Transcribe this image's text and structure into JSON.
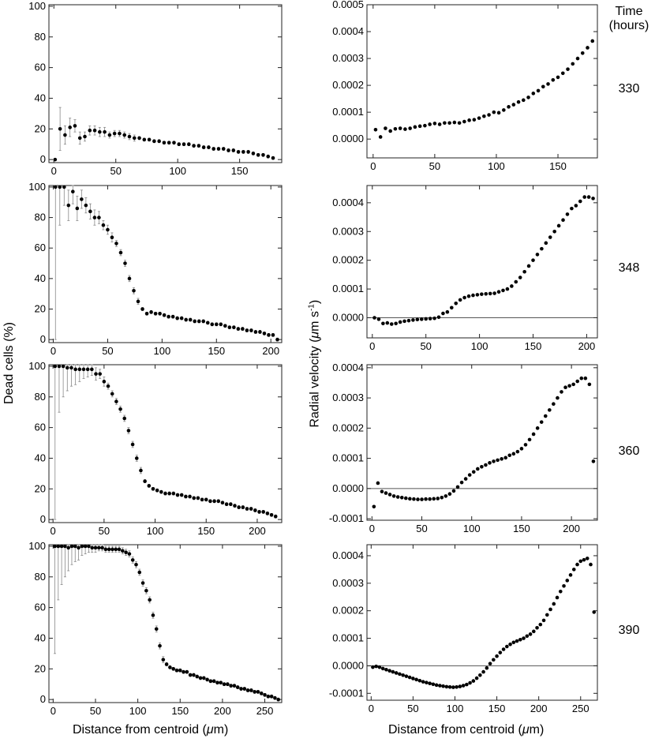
{
  "labels": {
    "left_ylabel": "Dead cells (%)",
    "right_ylabel_prefix": "Radial velocity (",
    "right_ylabel_mu": "μ",
    "right_ylabel_unit": "m s",
    "right_ylabel_exp": "-1",
    "right_ylabel_suffix": ")",
    "xlabel_prefix": "Distance from centroid (",
    "xlabel_mu": "μ",
    "xlabel_suffix": "m)",
    "time_header_1": "Time",
    "time_header_2": "(hours)"
  },
  "time_labels": [
    "330",
    "348",
    "360",
    "390"
  ],
  "chart_data": [
    {
      "type": "scatter",
      "panel": "dead-330",
      "series": "Dead cells (%)",
      "xlim": [
        -4,
        184
      ],
      "ylim": [
        -2,
        101
      ],
      "xticks": [
        0,
        50,
        100,
        150
      ],
      "yticks": [
        0,
        20,
        40,
        60,
        80,
        100
      ],
      "yticklabels": [
        "0",
        "20",
        "40",
        "60",
        "80",
        "100"
      ],
      "x": [
        1,
        5,
        9,
        13,
        17,
        21,
        25,
        29,
        33,
        37,
        41,
        45,
        49,
        53,
        57,
        61,
        65,
        69,
        73,
        77,
        81,
        85,
        89,
        93,
        97,
        101,
        105,
        109,
        113,
        117,
        121,
        125,
        129,
        133,
        137,
        141,
        145,
        149,
        153,
        157,
        161,
        165,
        169,
        173,
        177
      ],
      "y": [
        0,
        20,
        16,
        21,
        22,
        14,
        15,
        19,
        19,
        18,
        18,
        16,
        17,
        17,
        16,
        15,
        14,
        14,
        13,
        13,
        12,
        12,
        11,
        11,
        11,
        10,
        10,
        10,
        9,
        9,
        8,
        8,
        7,
        7,
        7,
        6,
        6,
        5,
        5,
        5,
        4,
        3,
        3,
        2,
        1
      ],
      "errors": [
        0,
        14,
        6,
        6,
        4,
        4,
        3,
        3,
        3,
        3,
        3,
        2,
        2,
        2,
        2,
        2,
        2,
        1,
        1,
        1,
        1,
        1,
        1,
        1,
        1,
        1,
        1,
        1,
        1,
        1,
        1,
        1,
        1,
        1,
        1,
        1,
        1,
        1,
        1,
        1,
        1,
        1,
        1,
        1,
        1
      ],
      "zero_line": false
    },
    {
      "type": "scatter",
      "panel": "vel-330",
      "series": "Radial velocity",
      "xlim": [
        -5,
        182
      ],
      "ylim": [
        -7e-05,
        0.0005
      ],
      "xticks": [
        0,
        50,
        100,
        150
      ],
      "yticks": [
        0,
        0.0001,
        0.0002,
        0.0003,
        0.0004,
        0.0005
      ],
      "yticklabels": [
        "0.0000",
        "0.0001",
        "0.0002",
        "0.0003",
        "0.0004",
        "0.0005"
      ],
      "x": [
        2,
        6,
        10,
        14,
        18,
        22,
        26,
        30,
        34,
        38,
        42,
        46,
        50,
        54,
        58,
        62,
        66,
        70,
        74,
        78,
        82,
        86,
        90,
        94,
        98,
        102,
        106,
        110,
        114,
        118,
        122,
        126,
        130,
        134,
        138,
        142,
        146,
        150,
        154,
        158,
        162,
        166,
        170,
        174,
        178
      ],
      "y": [
        3.5e-05,
        8e-06,
        4e-05,
        3e-05,
        3.8e-05,
        4e-05,
        3.7e-05,
        4e-05,
        4.5e-05,
        4.8e-05,
        5e-05,
        5.5e-05,
        5.8e-05,
        5.5e-05,
        6e-05,
        6e-05,
        6.2e-05,
        6e-05,
        6.5e-05,
        7e-05,
        7.2e-05,
        7.8e-05,
        8.5e-05,
        9e-05,
        0.0001,
        9.8e-05,
        0.000108,
        0.00012,
        0.000128,
        0.000138,
        0.000145,
        0.000155,
        0.00017,
        0.00018,
        0.000195,
        0.000205,
        0.00022,
        0.00023,
        0.000245,
        0.00026,
        0.00028,
        0.0003,
        0.00032,
        0.00034,
        0.000365
      ],
      "zero_line": false
    },
    {
      "type": "scatter",
      "panel": "dead-348",
      "series": "Dead cells (%)",
      "xlim": [
        -4,
        210
      ],
      "ylim": [
        -2,
        101
      ],
      "xticks": [
        0,
        50,
        100,
        150,
        200
      ],
      "yticks": [
        0,
        20,
        40,
        60,
        80,
        100
      ],
      "yticklabels": [
        "0",
        "20",
        "40",
        "60",
        "80",
        "100"
      ],
      "x": [
        2,
        6,
        10,
        14,
        18,
        22,
        26,
        30,
        34,
        38,
        42,
        46,
        50,
        54,
        58,
        62,
        66,
        70,
        74,
        78,
        82,
        86,
        90,
        94,
        98,
        102,
        106,
        110,
        114,
        118,
        122,
        126,
        130,
        134,
        138,
        142,
        146,
        150,
        154,
        158,
        162,
        166,
        170,
        174,
        178,
        182,
        186,
        190,
        194,
        198,
        202,
        206
      ],
      "y": [
        100,
        100,
        100,
        88,
        97,
        86,
        92,
        88,
        84,
        80,
        80,
        75,
        72,
        67,
        63,
        57,
        50,
        40,
        32,
        25,
        20,
        17,
        18,
        17,
        17,
        16,
        15,
        15,
        14,
        14,
        13,
        13,
        12,
        12,
        12,
        11,
        10,
        10,
        10,
        9,
        8,
        8,
        7,
        7,
        6,
        6,
        5,
        5,
        4,
        3,
        3,
        0
      ],
      "errors": [
        100,
        25,
        12,
        10,
        8,
        8,
        6,
        5,
        5,
        5,
        4,
        3,
        3,
        3,
        2,
        2,
        2,
        2,
        2,
        2,
        1,
        1,
        1,
        1,
        1,
        1,
        1,
        1,
        1,
        1,
        1,
        1,
        1,
        1,
        1,
        1,
        1,
        1,
        1,
        1,
        1,
        1,
        1,
        1,
        1,
        1,
        1,
        1,
        1,
        1,
        1,
        1
      ],
      "zero_line": false
    },
    {
      "type": "scatter",
      "panel": "vel-348",
      "series": "Radial velocity",
      "xlim": [
        -5,
        210
      ],
      "ylim": [
        -7e-05,
        0.00046
      ],
      "xticks": [
        0,
        50,
        100,
        150,
        200
      ],
      "yticks": [
        0,
        0.0001,
        0.0002,
        0.0003,
        0.0004
      ],
      "yticklabels": [
        "0.0000",
        "0.0001",
        "0.0002",
        "0.0003",
        "0.0004"
      ],
      "x": [
        2,
        6,
        10,
        14,
        18,
        22,
        26,
        30,
        34,
        38,
        42,
        46,
        50,
        54,
        58,
        62,
        66,
        70,
        74,
        78,
        82,
        86,
        90,
        94,
        98,
        102,
        106,
        110,
        114,
        118,
        122,
        126,
        130,
        134,
        138,
        142,
        146,
        150,
        154,
        158,
        162,
        166,
        170,
        174,
        178,
        182,
        186,
        190,
        194,
        198,
        202,
        206
      ],
      "y": [
        0,
        -5e-06,
        -2e-05,
        -1.8e-05,
        -2.2e-05,
        -2e-05,
        -1.5e-05,
        -1.2e-05,
        -1e-05,
        -8e-06,
        -6e-06,
        -5e-06,
        -4e-06,
        -3e-06,
        -2e-06,
        2e-06,
        1.5e-05,
        2e-05,
        3.5e-05,
        5e-05,
        6.2e-05,
        7e-05,
        7.5e-05,
        7.8e-05,
        8e-05,
        8.2e-05,
        8.3e-05,
        8.4e-05,
        8.5e-05,
        9e-05,
        9.5e-05,
        0.0001,
        0.00011,
        0.000125,
        0.00014,
        0.00016,
        0.00018,
        0.0002,
        0.00022,
        0.00024,
        0.00026,
        0.00028,
        0.0003,
        0.00032,
        0.00034,
        0.00036,
        0.00038,
        0.00039,
        0.000405,
        0.00042,
        0.00042,
        0.000415
      ],
      "zero_line": true
    },
    {
      "type": "scatter",
      "panel": "dead-360",
      "series": "Dead cells (%)",
      "xlim": [
        -4,
        224
      ],
      "ylim": [
        -2,
        101
      ],
      "xticks": [
        0,
        50,
        100,
        150,
        200
      ],
      "yticks": [
        0,
        20,
        40,
        60,
        80,
        100
      ],
      "yticklabels": [
        "0",
        "20",
        "40",
        "60",
        "80",
        "100"
      ],
      "x": [
        2,
        6,
        10,
        14,
        18,
        22,
        26,
        30,
        34,
        38,
        42,
        46,
        50,
        54,
        58,
        62,
        66,
        70,
        74,
        78,
        82,
        86,
        90,
        94,
        98,
        102,
        106,
        110,
        114,
        118,
        122,
        126,
        130,
        134,
        138,
        142,
        146,
        150,
        154,
        158,
        162,
        166,
        170,
        174,
        178,
        182,
        186,
        190,
        194,
        198,
        202,
        206,
        210,
        214,
        218
      ],
      "y": [
        100,
        100,
        100,
        99,
        99,
        98,
        98,
        98,
        98,
        98,
        95,
        95,
        90,
        87,
        82,
        77,
        72,
        66,
        58,
        49,
        40,
        32,
        25,
        22,
        20,
        19,
        18,
        17,
        17,
        17,
        16,
        16,
        15,
        15,
        14,
        14,
        13,
        13,
        12,
        12,
        12,
        11,
        10,
        10,
        9,
        8,
        8,
        7,
        7,
        6,
        5,
        5,
        4,
        3,
        2
      ],
      "errors": [
        100,
        30,
        20,
        15,
        12,
        10,
        8,
        6,
        5,
        4,
        4,
        3,
        3,
        2,
        2,
        2,
        2,
        2,
        2,
        2,
        2,
        2,
        1,
        1,
        1,
        1,
        1,
        1,
        1,
        1,
        1,
        1,
        1,
        1,
        1,
        1,
        1,
        1,
        1,
        1,
        1,
        1,
        1,
        1,
        1,
        1,
        1,
        1,
        1,
        1,
        1,
        1,
        1,
        1,
        1
      ],
      "zero_line": false
    },
    {
      "type": "scatter",
      "panel": "vel-360",
      "series": "Radial velocity",
      "xlim": [
        -5,
        226
      ],
      "ylim": [
        -0.000105,
        0.00041
      ],
      "xticks": [
        0,
        50,
        100,
        150,
        200
      ],
      "yticks": [
        -0.0001,
        0,
        0.0001,
        0.0002,
        0.0003,
        0.0004
      ],
      "yticklabels": [
        "-0.0001",
        "0.0000",
        "0.0001",
        "0.0002",
        "0.0003",
        "0.0004"
      ],
      "x": [
        2,
        6,
        10,
        14,
        18,
        22,
        26,
        30,
        34,
        38,
        42,
        46,
        50,
        54,
        58,
        62,
        66,
        70,
        74,
        78,
        82,
        86,
        90,
        94,
        98,
        102,
        106,
        110,
        114,
        118,
        122,
        126,
        130,
        134,
        138,
        142,
        146,
        150,
        154,
        158,
        162,
        166,
        170,
        174,
        178,
        182,
        186,
        190,
        194,
        198,
        202,
        206,
        210,
        214,
        218,
        222
      ],
      "y": [
        -6e-05,
        1.8e-05,
        -1e-05,
        -1.5e-05,
        -2e-05,
        -2.5e-05,
        -2.8e-05,
        -3e-05,
        -3.2e-05,
        -3.4e-05,
        -3.5e-05,
        -3.6e-05,
        -3.6e-05,
        -3.5e-05,
        -3.5e-05,
        -3.4e-05,
        -3.3e-05,
        -3e-05,
        -2.5e-05,
        -1.8e-05,
        -8e-06,
        5e-06,
        2e-05,
        3.2e-05,
        4.5e-05,
        5.5e-05,
        6.5e-05,
        7.2e-05,
        7.8e-05,
        8.5e-05,
        9e-05,
        9.4e-05,
        9.8e-05,
        0.000102,
        0.00011,
        0.000115,
        0.000122,
        0.000132,
        0.000145,
        0.000162,
        0.00018,
        0.0002,
        0.00022,
        0.00024,
        0.00026,
        0.00028,
        0.0003,
        0.00032,
        0.000335,
        0.00034,
        0.000345,
        0.000355,
        0.000365,
        0.000365,
        0.000345,
        9e-05
      ],
      "zero_line": true
    },
    {
      "type": "scatter",
      "panel": "dead-390",
      "series": "Dead cells (%)",
      "xlim": [
        -5,
        270
      ],
      "ylim": [
        -2,
        101
      ],
      "xticks": [
        0,
        50,
        100,
        150,
        200,
        250
      ],
      "yticks": [
        0,
        20,
        40,
        60,
        80,
        100
      ],
      "yticklabels": [
        "0",
        "20",
        "40",
        "60",
        "80",
        "100"
      ],
      "x": [
        2,
        6,
        10,
        14,
        18,
        22,
        26,
        30,
        34,
        38,
        42,
        46,
        50,
        54,
        58,
        62,
        66,
        70,
        74,
        78,
        82,
        86,
        90,
        94,
        98,
        102,
        106,
        110,
        114,
        118,
        122,
        126,
        130,
        134,
        138,
        142,
        146,
        150,
        154,
        158,
        162,
        166,
        170,
        174,
        178,
        182,
        186,
        190,
        194,
        198,
        202,
        206,
        210,
        214,
        218,
        222,
        226,
        230,
        234,
        238,
        242,
        246,
        250,
        254,
        258,
        262,
        266
      ],
      "y": [
        100,
        100,
        100,
        100,
        99,
        100,
        100,
        99,
        100,
        100,
        100,
        99,
        99,
        99,
        99,
        98,
        98,
        98,
        98,
        98,
        97,
        96,
        95,
        91,
        88,
        83,
        76,
        71,
        65,
        55,
        46,
        35,
        26,
        23,
        21,
        20,
        19,
        19,
        18,
        18,
        16,
        16,
        15,
        14,
        14,
        13,
        12,
        12,
        11,
        11,
        10,
        10,
        9,
        9,
        8,
        7,
        7,
        6,
        6,
        5,
        5,
        4,
        3,
        2,
        2,
        1,
        0
      ],
      "errors": [
        70,
        35,
        25,
        20,
        15,
        12,
        10,
        8,
        6,
        5,
        4,
        3,
        3,
        2,
        2,
        2,
        2,
        2,
        2,
        2,
        2,
        2,
        2,
        2,
        2,
        2,
        2,
        2,
        2,
        2,
        2,
        2,
        2,
        1,
        1,
        1,
        1,
        1,
        1,
        1,
        1,
        1,
        1,
        1,
        1,
        1,
        1,
        1,
        1,
        1,
        1,
        1,
        1,
        1,
        1,
        1,
        1,
        1,
        1,
        1,
        1,
        1,
        1,
        1,
        1,
        1,
        1
      ],
      "zero_line": false
    },
    {
      "type": "scatter",
      "panel": "vel-390",
      "series": "Radial velocity",
      "xlim": [
        -5,
        270
      ],
      "ylim": [
        -0.000125,
        0.00044
      ],
      "xticks": [
        0,
        50,
        100,
        150,
        200,
        250
      ],
      "yticks": [
        -0.0001,
        0,
        0.0001,
        0.0002,
        0.0003,
        0.0004
      ],
      "yticklabels": [
        "-0.0001",
        "0.0000",
        "0.0001",
        "0.0002",
        "0.0003",
        "0.0004"
      ],
      "x": [
        2,
        6,
        10,
        14,
        18,
        22,
        26,
        30,
        34,
        38,
        42,
        46,
        50,
        54,
        58,
        62,
        66,
        70,
        74,
        78,
        82,
        86,
        90,
        94,
        98,
        102,
        106,
        110,
        114,
        118,
        122,
        126,
        130,
        134,
        138,
        142,
        146,
        150,
        154,
        158,
        162,
        166,
        170,
        174,
        178,
        182,
        186,
        190,
        194,
        198,
        202,
        206,
        210,
        214,
        218,
        222,
        226,
        230,
        234,
        238,
        242,
        246,
        250,
        254,
        258,
        262,
        266
      ],
      "y": [
        -5e-06,
        -2e-06,
        -5e-06,
        -1e-05,
        -1.4e-05,
        -1.8e-05,
        -2.2e-05,
        -2.6e-05,
        -3e-05,
        -3.4e-05,
        -3.8e-05,
        -4.2e-05,
        -4.6e-05,
        -5e-05,
        -5.4e-05,
        -5.8e-05,
        -6.1e-05,
        -6.4e-05,
        -6.7e-05,
        -7e-05,
        -7.2e-05,
        -7.4e-05,
        -7.6e-05,
        -7.7e-05,
        -7.8e-05,
        -7.7e-05,
        -7.5e-05,
        -7.2e-05,
        -6.8e-05,
        -6.2e-05,
        -5.5e-05,
        -4.5e-05,
        -3.4e-05,
        -2.2e-05,
        -8e-06,
        8e-06,
        2.2e-05,
        3.5e-05,
        4.8e-05,
        6e-05,
        7e-05,
        7.8e-05,
        8.5e-05,
        9e-05,
        9.5e-05,
        0.0001,
        0.000108,
        0.000115,
        0.000125,
        0.000138,
        0.00015,
        0.000165,
        0.000185,
        0.000205,
        0.000225,
        0.000248,
        0.00027,
        0.00029,
        0.00031,
        0.00033,
        0.00035,
        0.000368,
        0.00038,
        0.000385,
        0.00039,
        0.000368,
        0.000195
      ],
      "zero_line": true
    }
  ]
}
